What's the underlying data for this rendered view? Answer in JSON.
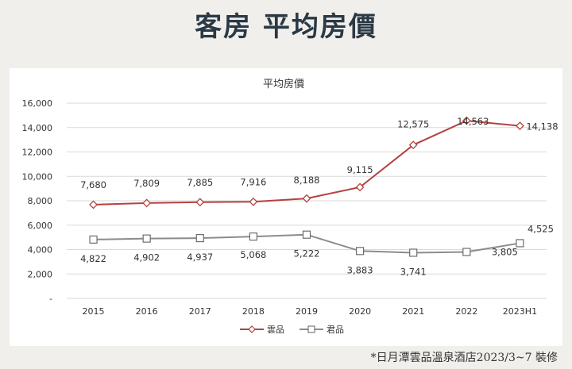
{
  "header": {
    "title": "客房 平均房價"
  },
  "footnote": "*日月潭雲品溫泉酒店2023/3~7 裝修",
  "chart_data": {
    "type": "line",
    "title": "平均房價",
    "categories": [
      "2015",
      "2016",
      "2017",
      "2018",
      "2019",
      "2020",
      "2021",
      "2022",
      "2023H1"
    ],
    "y_ticks": [
      "-",
      "2,000",
      "4,000",
      "6,000",
      "8,000",
      "10,000",
      "12,000",
      "14,000",
      "16,000"
    ],
    "ylim": [
      0,
      16000
    ],
    "grid": true,
    "legend_position": "bottom",
    "series": [
      {
        "name": "雲品",
        "color": "#b5413f",
        "marker": "diamond",
        "values": [
          7680,
          7809,
          7885,
          7916,
          8188,
          9115,
          12575,
          14563,
          14138
        ],
        "labels": [
          "7,680",
          "7,809",
          "7,885",
          "7,916",
          "8,188",
          "9,115",
          "12,575",
          "14,563",
          "14,138"
        ]
      },
      {
        "name": "君品",
        "color": "#8c8c8c",
        "marker": "square",
        "values": [
          4822,
          4902,
          4937,
          5068,
          5222,
          3883,
          3741,
          3805,
          4525
        ],
        "labels": [
          "4,822",
          "4,902",
          "4,937",
          "5,068",
          "5,222",
          "3,883",
          "3,741",
          "3,805",
          "4,525"
        ]
      }
    ]
  }
}
